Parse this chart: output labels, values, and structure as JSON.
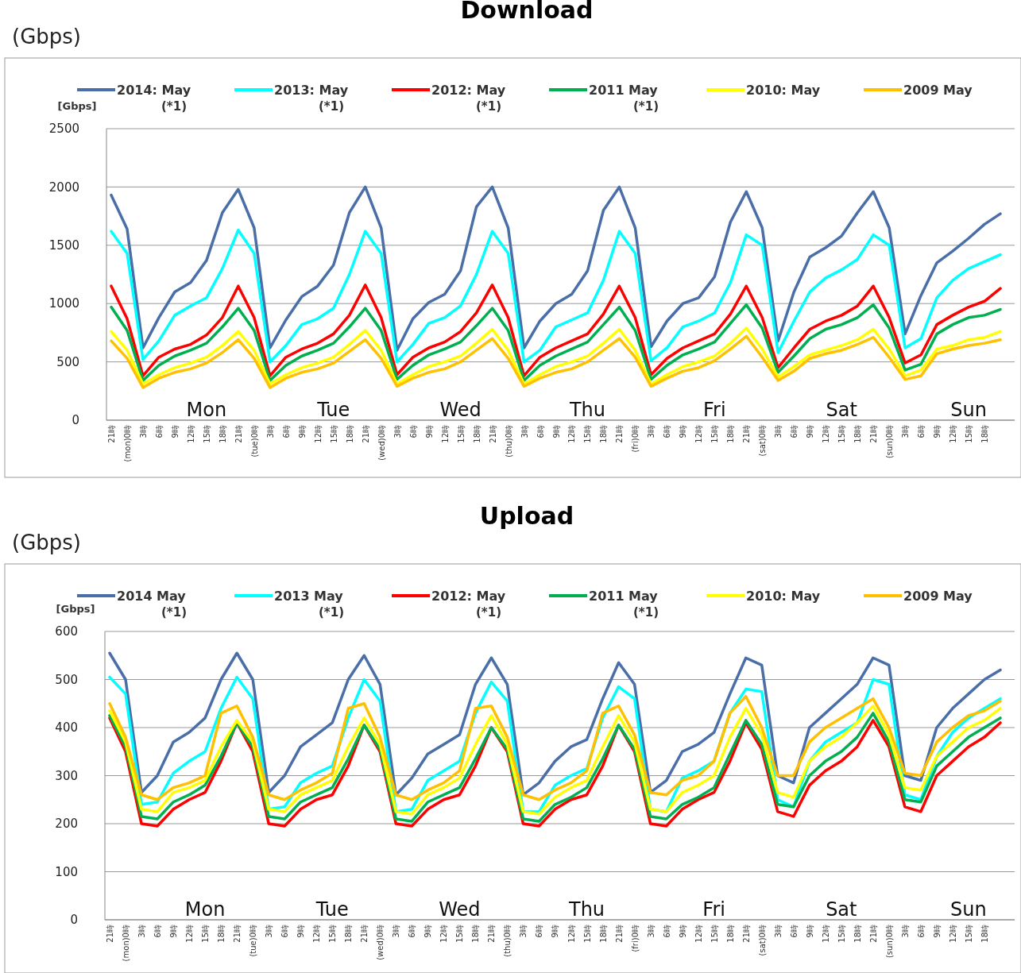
{
  "chart_data": [
    {
      "type": "line",
      "title": "Download",
      "subtitle": "(Gbps)",
      "ylabel": "[Gbps]",
      "grid": "y",
      "legend": "top",
      "line_style": "solid",
      "ylim": [
        0,
        2500
      ],
      "yticks": [
        0,
        500,
        1000,
        1500,
        2000,
        2500
      ],
      "categories": [
        "21時",
        "(mon)0時",
        "3時",
        "6時",
        "9時",
        "12時",
        "15時",
        "18時",
        "21時",
        "(tue)0時",
        "3時",
        "6時",
        "9時",
        "12時",
        "15時",
        "18時",
        "21時",
        "(wed)0時",
        "3時",
        "6時",
        "9時",
        "12時",
        "15時",
        "18時",
        "21時",
        "(thu)0時",
        "3時",
        "6時",
        "9時",
        "12時",
        "15時",
        "18時",
        "21時",
        "(fri)0時",
        "3時",
        "6時",
        "9時",
        "12時",
        "15時",
        "18時",
        "21時",
        "(sat)0時",
        "3時",
        "6時",
        "9時",
        "12時",
        "15時",
        "18時",
        "21時",
        "(sun)0時",
        "3時",
        "6時",
        "9時",
        "12時",
        "15時",
        "18時",
        null
      ],
      "annotations": [
        "Mon",
        "Tue",
        "Wed",
        "Thu",
        "Fri",
        "Sat",
        "Sun"
      ],
      "series": [
        {
          "name": "2014: May (*1)",
          "color": "#4a6fa8",
          "values": [
            1930,
            1640,
            620,
            880,
            1100,
            1180,
            1370,
            1780,
            1980,
            1650,
            620,
            860,
            1060,
            1150,
            1330,
            1780,
            2000,
            1650,
            600,
            870,
            1010,
            1080,
            1280,
            1830,
            2000,
            1650,
            620,
            850,
            1000,
            1080,
            1280,
            1800,
            2000,
            1650,
            630,
            850,
            1000,
            1050,
            1230,
            1700,
            1960,
            1650,
            680,
            1100,
            1400,
            1480,
            1580,
            1780,
            1960,
            1650,
            740,
            1070,
            1350,
            1450,
            1560,
            1680,
            1770
          ]
        },
        {
          "name": "2013: May (*1)",
          "color": "#00ffff",
          "values": [
            1620,
            1430,
            520,
            680,
            900,
            980,
            1050,
            1300,
            1630,
            1430,
            500,
            640,
            820,
            870,
            960,
            1250,
            1620,
            1430,
            500,
            650,
            830,
            880,
            980,
            1250,
            1620,
            1430,
            500,
            600,
            800,
            860,
            920,
            1200,
            1620,
            1430,
            510,
            620,
            800,
            850,
            920,
            1180,
            1590,
            1500,
            580,
            850,
            1100,
            1220,
            1290,
            1380,
            1590,
            1500,
            620,
            700,
            1050,
            1200,
            1300,
            1360,
            1420
          ]
        },
        {
          "name": "2012: May (*1)",
          "color": "#ff0000",
          "values": [
            1150,
            870,
            380,
            540,
            610,
            650,
            730,
            880,
            1150,
            880,
            380,
            540,
            610,
            660,
            740,
            900,
            1160,
            880,
            390,
            540,
            620,
            670,
            760,
            920,
            1160,
            880,
            380,
            540,
            620,
            680,
            740,
            910,
            1150,
            880,
            390,
            530,
            620,
            680,
            740,
            910,
            1150,
            880,
            450,
            620,
            780,
            850,
            900,
            980,
            1150,
            880,
            490,
            560,
            820,
            900,
            970,
            1020,
            1130
          ]
        },
        {
          "name": "2011 May (*1)",
          "color": "#00b050",
          "values": [
            970,
            770,
            340,
            470,
            550,
            600,
            660,
            800,
            960,
            770,
            340,
            470,
            550,
            600,
            660,
            800,
            960,
            770,
            350,
            470,
            560,
            610,
            670,
            810,
            960,
            770,
            340,
            470,
            550,
            610,
            670,
            820,
            970,
            770,
            350,
            470,
            560,
            610,
            670,
            830,
            990,
            790,
            410,
            550,
            700,
            780,
            820,
            880,
            990,
            790,
            430,
            480,
            740,
            820,
            880,
            900,
            950
          ]
        },
        {
          "name": "2010: May",
          "color": "#ffff00",
          "values": [
            760,
            600,
            310,
            390,
            450,
            490,
            540,
            640,
            760,
            600,
            310,
            390,
            450,
            490,
            540,
            650,
            770,
            600,
            310,
            390,
            460,
            500,
            550,
            660,
            780,
            600,
            310,
            390,
            460,
            500,
            550,
            660,
            780,
            600,
            310,
            390,
            460,
            500,
            550,
            660,
            790,
            610,
            370,
            460,
            560,
            600,
            640,
            690,
            780,
            610,
            380,
            430,
            610,
            640,
            690,
            710,
            760
          ]
        },
        {
          "name": "2009 May",
          "color": "#ffc000",
          "values": [
            680,
            530,
            280,
            360,
            410,
            440,
            490,
            580,
            690,
            530,
            280,
            360,
            410,
            440,
            490,
            590,
            690,
            530,
            290,
            360,
            410,
            440,
            500,
            600,
            700,
            530,
            290,
            360,
            410,
            440,
            500,
            600,
            700,
            540,
            290,
            360,
            420,
            450,
            510,
            610,
            720,
            540,
            340,
            420,
            530,
            570,
            600,
            650,
            710,
            540,
            350,
            380,
            570,
            610,
            640,
            660,
            690
          ]
        }
      ]
    },
    {
      "type": "line",
      "title": "Upload",
      "subtitle": "(Gbps)",
      "ylabel": "[Gbps]",
      "grid": "y",
      "legend": "top",
      "line_style": "solid",
      "ylim": [
        0,
        600
      ],
      "yticks": [
        0,
        100,
        200,
        300,
        400,
        500,
        600
      ],
      "categories": [
        "21時",
        "(mon)0時",
        "3時",
        "6時",
        "9時",
        "12時",
        "15時",
        "18時",
        "21時",
        "(tue)0時",
        "3時",
        "6時",
        "9時",
        "12時",
        "15時",
        "18時",
        "21時",
        "(wed)0時",
        "3時",
        "6時",
        "9時",
        "12時",
        "15時",
        "18時",
        "21時",
        "(thu)0時",
        "3時",
        "6時",
        "9時",
        "12時",
        "15時",
        "18時",
        "21時",
        "(fri)0時",
        "3時",
        "6時",
        "9時",
        "12時",
        "15時",
        "18時",
        "21時",
        "(sat)0時",
        "3時",
        "6時",
        "9時",
        "12時",
        "15時",
        "18時",
        "21時",
        "(sun)0時",
        "3時",
        "6時",
        "9時",
        "12時",
        "15時",
        "18時",
        null
      ],
      "annotations": [
        "Mon",
        "Tue",
        "Wed",
        "Thu",
        "Fri",
        "Sat",
        "Sun"
      ],
      "series": [
        {
          "name": "2014 May (*1)",
          "color": "#4a6fa8",
          "values": [
            555,
            500,
            265,
            300,
            370,
            390,
            420,
            500,
            555,
            500,
            265,
            300,
            360,
            385,
            410,
            500,
            550,
            490,
            260,
            295,
            345,
            365,
            385,
            490,
            545,
            490,
            260,
            285,
            330,
            360,
            375,
            460,
            535,
            490,
            265,
            290,
            350,
            365,
            390,
            470,
            545,
            530,
            300,
            285,
            400,
            430,
            460,
            490,
            545,
            530,
            300,
            290,
            400,
            440,
            470,
            500,
            520
          ]
        },
        {
          "name": "2013 May (*1)",
          "color": "#00ffff",
          "values": [
            505,
            470,
            240,
            245,
            305,
            330,
            350,
            440,
            505,
            460,
            230,
            235,
            285,
            305,
            320,
            420,
            500,
            455,
            225,
            230,
            290,
            310,
            330,
            430,
            495,
            455,
            225,
            225,
            280,
            300,
            315,
            420,
            485,
            460,
            230,
            225,
            295,
            310,
            330,
            430,
            480,
            475,
            250,
            235,
            330,
            370,
            390,
            410,
            500,
            490,
            260,
            250,
            340,
            390,
            420,
            440,
            460
          ]
        },
        {
          "name": "2012: May (*1)",
          "color": "#ff0000",
          "values": [
            420,
            350,
            200,
            195,
            230,
            250,
            265,
            330,
            410,
            350,
            200,
            195,
            230,
            250,
            260,
            320,
            405,
            350,
            200,
            195,
            230,
            250,
            260,
            320,
            400,
            350,
            200,
            195,
            230,
            250,
            260,
            320,
            405,
            350,
            200,
            195,
            230,
            250,
            265,
            330,
            410,
            355,
            225,
            215,
            280,
            310,
            330,
            360,
            415,
            360,
            235,
            225,
            300,
            330,
            360,
            380,
            410
          ]
        },
        {
          "name": "2011 May (*1)",
          "color": "#00b050",
          "values": [
            425,
            360,
            215,
            210,
            245,
            260,
            280,
            340,
            410,
            360,
            215,
            210,
            245,
            260,
            275,
            335,
            405,
            355,
            210,
            205,
            245,
            260,
            275,
            335,
            400,
            355,
            210,
            205,
            240,
            255,
            275,
            335,
            405,
            355,
            215,
            210,
            240,
            255,
            275,
            345,
            415,
            365,
            240,
            235,
            300,
            330,
            350,
            380,
            430,
            370,
            250,
            245,
            320,
            350,
            380,
            400,
            420
          ]
        },
        {
          "name": "2010: May",
          "color": "#ffff00",
          "values": [
            435,
            370,
            230,
            225,
            265,
            275,
            290,
            360,
            415,
            370,
            230,
            225,
            260,
            275,
            290,
            360,
            420,
            365,
            225,
            220,
            260,
            275,
            295,
            365,
            425,
            365,
            225,
            220,
            255,
            275,
            290,
            360,
            425,
            370,
            230,
            225,
            265,
            280,
            300,
            380,
            440,
            385,
            265,
            255,
            330,
            360,
            380,
            410,
            445,
            385,
            275,
            270,
            340,
            370,
            400,
            415,
            440
          ]
        },
        {
          "name": "2009 May",
          "color": "#ffc000",
          "values": [
            450,
            380,
            260,
            250,
            275,
            285,
            300,
            430,
            445,
            380,
            260,
            250,
            270,
            285,
            305,
            440,
            450,
            380,
            260,
            250,
            270,
            285,
            310,
            440,
            445,
            380,
            260,
            250,
            270,
            285,
            310,
            430,
            445,
            385,
            265,
            260,
            290,
            300,
            330,
            430,
            465,
            400,
            300,
            300,
            370,
            400,
            420,
            440,
            460,
            400,
            305,
            300,
            370,
            400,
            425,
            435,
            455
          ]
        }
      ]
    }
  ]
}
